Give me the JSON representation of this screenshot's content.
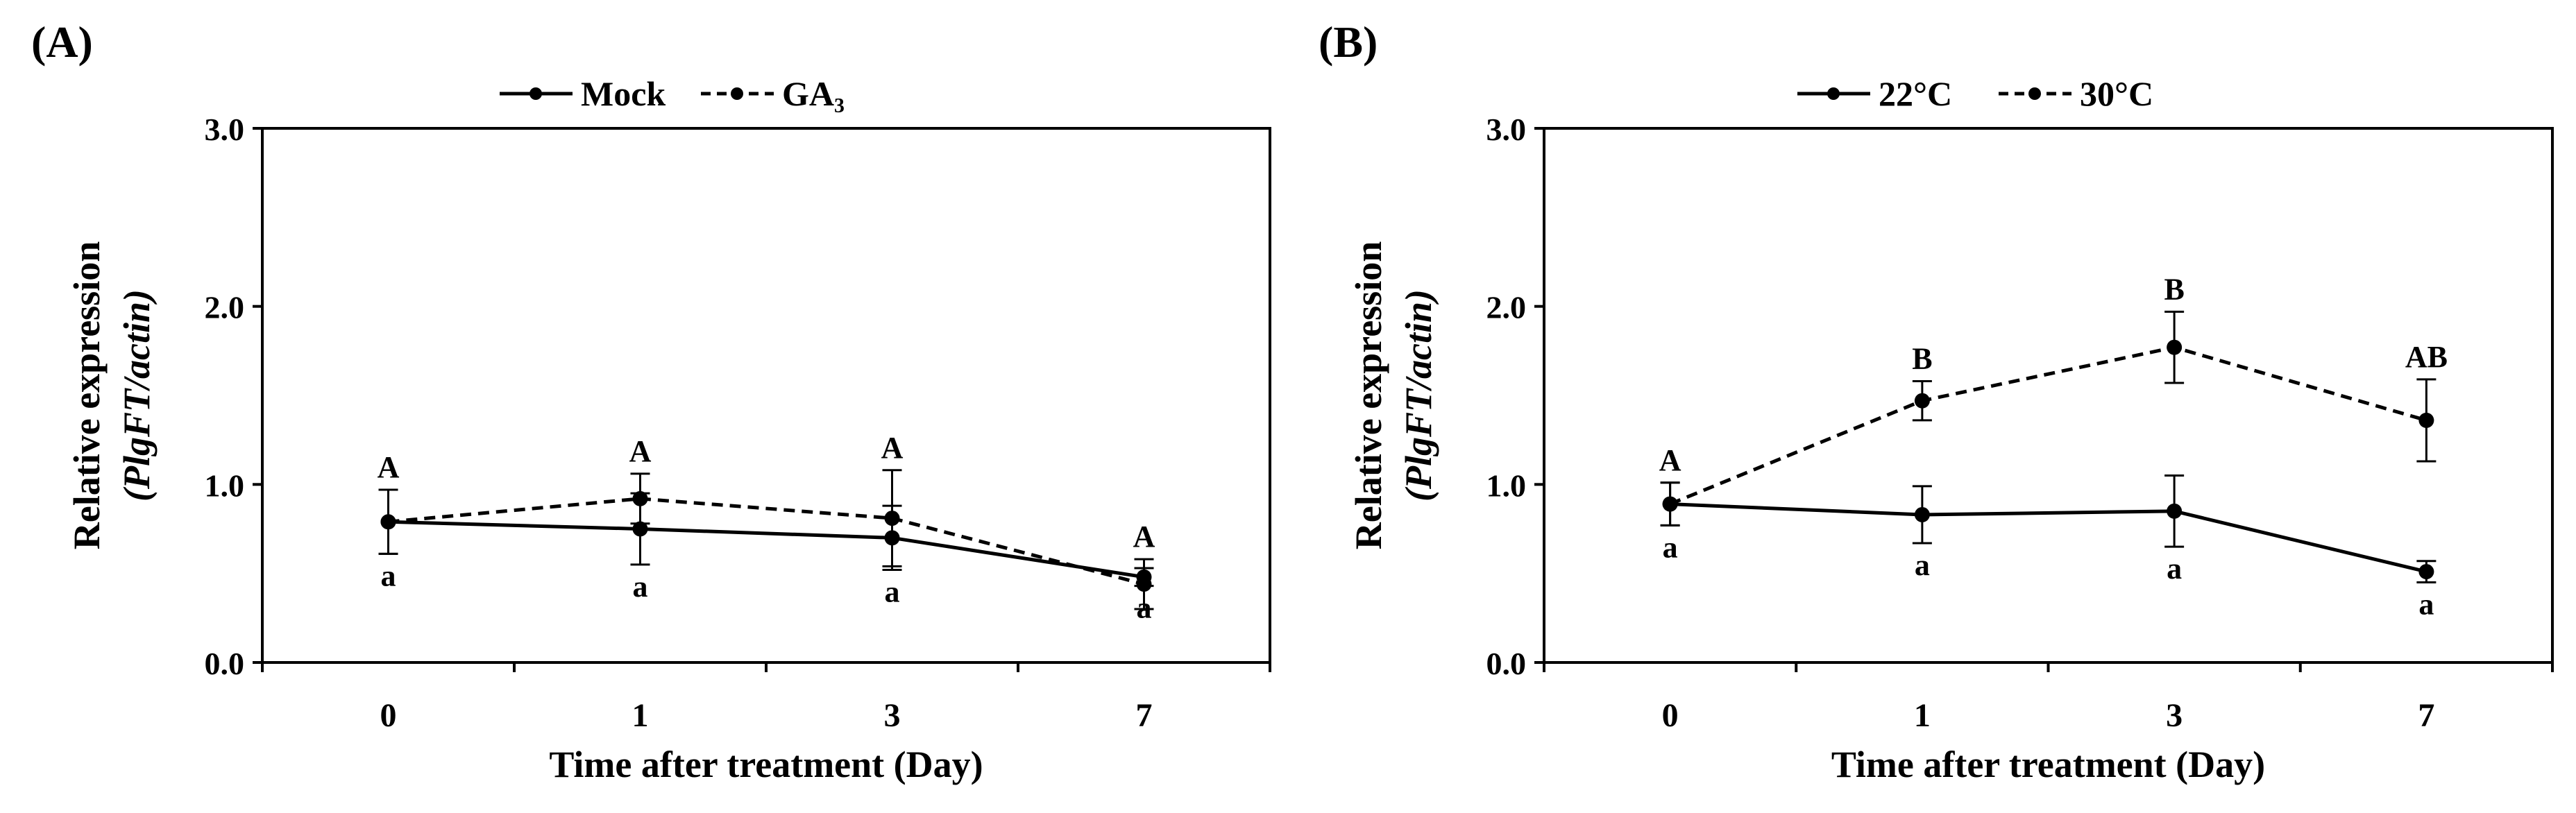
{
  "figure": {
    "panels": [
      {
        "label": "(A)"
      },
      {
        "label": "(B)"
      }
    ]
  },
  "colors": {
    "line": "#000000",
    "background": "#ffffff"
  },
  "chart_data": [
    {
      "type": "line",
      "panel": "(A)",
      "categories": [
        "0",
        "1",
        "3",
        "7"
      ],
      "xlabel": "Time after treatment (Day)",
      "ylabel_line1": "Relative expression",
      "ylabel_line2": "(PlgFT/actin)",
      "ylim": [
        0,
        3.0
      ],
      "yticks": [
        0,
        1.0,
        2.0,
        3.0
      ],
      "ytick_labels": [
        "0.0",
        "1.0",
        "2.0",
        "3.0"
      ],
      "legend_position": "top-center",
      "series": [
        {
          "name": "Mock",
          "style": "solid",
          "values": [
            0.79,
            0.75,
            0.7,
            0.48
          ],
          "errors": [
            0.18,
            0.2,
            0.18,
            0.05
          ],
          "letters": [
            "a",
            "a",
            "a",
            "a"
          ],
          "letter_position": "below"
        },
        {
          "name": "GA₃",
          "style": "dashed",
          "values": [
            0.79,
            0.92,
            0.81,
            0.44
          ],
          "errors": [
            0.18,
            0.14,
            0.27,
            0.14
          ],
          "letters": [
            "A",
            "A",
            "A",
            "A"
          ],
          "letter_position": "above"
        }
      ]
    },
    {
      "type": "line",
      "panel": "(B)",
      "categories": [
        "0",
        "1",
        "3",
        "7"
      ],
      "xlabel": "Time after treatment (Day)",
      "ylabel_line1": "Relative expression",
      "ylabel_line2": "(PlgFT/actin)",
      "ylim": [
        0,
        3.0
      ],
      "yticks": [
        0,
        1.0,
        2.0,
        3.0
      ],
      "ytick_labels": [
        "0.0",
        "1.0",
        "2.0",
        "3.0"
      ],
      "legend_position": "top-center",
      "series": [
        {
          "name": "22°C",
          "style": "solid",
          "values": [
            0.89,
            0.83,
            0.85,
            0.51
          ],
          "errors": [
            0.12,
            0.16,
            0.2,
            0.06
          ],
          "letters": [
            "a",
            "a",
            "a",
            "a"
          ],
          "letter_position": "below"
        },
        {
          "name": "30°C",
          "style": "dashed",
          "values": [
            0.89,
            1.47,
            1.77,
            1.36
          ],
          "errors": [
            0.12,
            0.11,
            0.2,
            0.23
          ],
          "letters": [
            "A",
            "B",
            "B",
            "AB"
          ],
          "letter_position": "above"
        }
      ]
    }
  ]
}
